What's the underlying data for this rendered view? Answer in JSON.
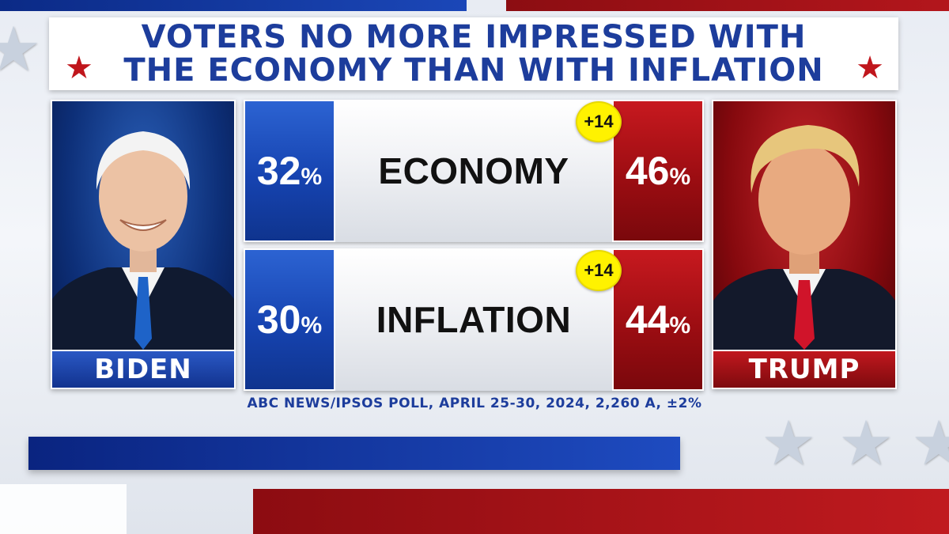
{
  "title": {
    "line1": "VOTERS NO MORE IMPRESSED WITH",
    "line2": "THE ECONOMY THAN WITH INFLATION"
  },
  "candidates": {
    "left": {
      "name": "BIDEN",
      "color": "#1643b0"
    },
    "right": {
      "name": "TRUMP",
      "color": "#9c0d12"
    }
  },
  "chart_data": {
    "type": "table",
    "title": "VOTERS NO MORE IMPRESSED WITH THE ECONOMY THAN WITH INFLATION",
    "categories": [
      "ECONOMY",
      "INFLATION"
    ],
    "series": [
      {
        "name": "BIDEN",
        "values": [
          32,
          30
        ]
      },
      {
        "name": "TRUMP",
        "values": [
          46,
          44
        ]
      }
    ],
    "differences": [
      "+14",
      "+14"
    ],
    "unit": "%",
    "rows": [
      {
        "label": "ECONOMY",
        "left_value": "32",
        "right_value": "46",
        "diff": "+14"
      },
      {
        "label": "INFLATION",
        "left_value": "30",
        "right_value": "44",
        "diff": "+14"
      }
    ]
  },
  "percent_sign": "%",
  "source": "ABC NEWS/IPSOS POLL, APRIL 25-30, 2024, 2,260 A, ±2%",
  "icons": {
    "title_star": "star-icon",
    "background_star": "star-icon"
  }
}
